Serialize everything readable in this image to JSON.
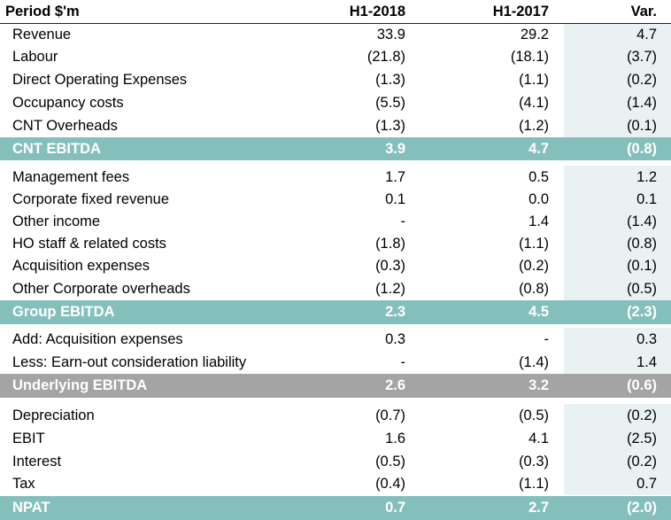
{
  "header": {
    "period": "Period $'m",
    "h1_2018": "H1-2018",
    "h1_2017": "H1-2017",
    "var": "Var."
  },
  "rows": [
    {
      "label": "Revenue",
      "h1_2018": "33.9",
      "h1_2017": "29.2",
      "var": "4.7"
    },
    {
      "label": "Labour",
      "h1_2018": "(21.8)",
      "h1_2017": "(18.1)",
      "var": "(3.7)"
    },
    {
      "label": "Direct Operating Expenses",
      "h1_2018": "(1.3)",
      "h1_2017": "(1.1)",
      "var": "(0.2)"
    },
    {
      "label": "Occupancy costs",
      "h1_2018": "(5.5)",
      "h1_2017": "(4.1)",
      "var": "(1.4)"
    },
    {
      "label": "CNT Overheads",
      "h1_2018": "(1.3)",
      "h1_2017": "(1.2)",
      "var": "(0.1)"
    },
    {
      "label": "CNT EBITDA",
      "h1_2018": "3.9",
      "h1_2017": "4.7",
      "var": "(0.8)"
    },
    {
      "label": "Management fees",
      "h1_2018": "1.7",
      "h1_2017": "0.5",
      "var": "1.2"
    },
    {
      "label": "Corporate fixed revenue",
      "h1_2018": "0.1",
      "h1_2017": "0.0",
      "var": "0.1"
    },
    {
      "label": "Other income",
      "h1_2018": "-",
      "h1_2017": "1.4",
      "var": "(1.4)"
    },
    {
      "label": "HO staff & related costs",
      "h1_2018": "(1.8)",
      "h1_2017": "(1.1)",
      "var": "(0.8)"
    },
    {
      "label": "Acquisition expenses",
      "h1_2018": "(0.3)",
      "h1_2017": "(0.2)",
      "var": "(0.1)"
    },
    {
      "label": "Other Corporate overheads",
      "h1_2018": "(1.2)",
      "h1_2017": "(0.8)",
      "var": "(0.5)"
    },
    {
      "label": "Group EBITDA",
      "h1_2018": "2.3",
      "h1_2017": "4.5",
      "var": "(2.3)"
    },
    {
      "label": "Add: Acquisition expenses",
      "h1_2018": "0.3",
      "h1_2017": "-",
      "var": "0.3"
    },
    {
      "label": "Less: Earn-out consideration liability",
      "h1_2018": "-",
      "h1_2017": "(1.4)",
      "var": "1.4"
    },
    {
      "label": "Underlying EBITDA",
      "h1_2018": "2.6",
      "h1_2017": "3.2",
      "var": "(0.6)"
    },
    {
      "label": "Depreciation",
      "h1_2018": "(0.7)",
      "h1_2017": "(0.5)",
      "var": "(0.2)"
    },
    {
      "label": "EBIT",
      "h1_2018": "1.6",
      "h1_2017": "4.1",
      "var": "(2.5)"
    },
    {
      "label": "Interest",
      "h1_2018": "(0.5)",
      "h1_2017": "(0.3)",
      "var": "(0.2)"
    },
    {
      "label": "Tax",
      "h1_2018": "(0.4)",
      "h1_2017": "(1.1)",
      "var": "0.7"
    },
    {
      "label": "NPAT",
      "h1_2018": "0.7",
      "h1_2017": "2.7",
      "var": "(2.0)"
    }
  ],
  "colors": {
    "subtotal_teal": "#84bfbc",
    "subtotal_grey": "#a4a4a4",
    "variance_shade": "#e9f1f2"
  }
}
